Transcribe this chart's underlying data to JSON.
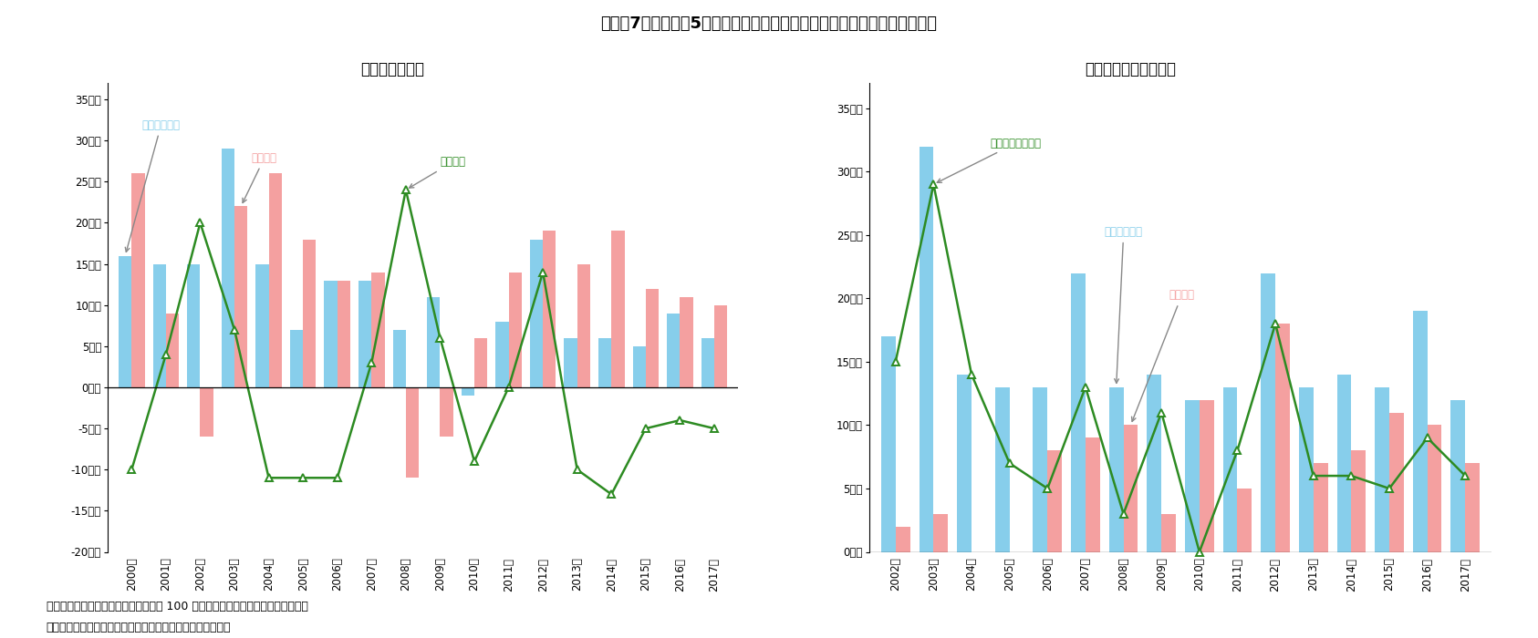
{
  "title": "図表－7　東京都心5区オフィスビルの賃貸可能面積・賃貸面積・空室面積",
  "subtitle_left": "＜前年比増分＞",
  "subtitle_right": "＜賃貸可能面積増分＞",
  "footnote1": "（注）都心５区に立地する基準階面積 100 坪以上の主要賃貸事務所ビルを対象。",
  "footnote2": "（出所）三鬼商事のデータを基にニッセイ基礎研究所が作成",
  "left_years": [
    "2000年",
    "2001年",
    "2002年",
    "2003年",
    "2004年",
    "2005年",
    "2006年",
    "2007年",
    "2008年",
    "2009年",
    "2010年",
    "2011年",
    "2012年",
    "2013年",
    "2014年",
    "2015年",
    "2016年",
    "2017年"
  ],
  "left_bar1": [
    16,
    15,
    15,
    29,
    15,
    7,
    13,
    13,
    7,
    11,
    -1,
    8,
    18,
    6,
    6,
    5,
    9,
    6
  ],
  "left_bar2": [
    26,
    9,
    -6,
    22,
    26,
    18,
    13,
    14,
    -11,
    -6,
    6,
    14,
    19,
    15,
    19,
    12,
    11,
    10
  ],
  "left_line": [
    -10,
    4,
    20,
    7,
    -11,
    -11,
    -11,
    3,
    24,
    6,
    -9,
    0,
    14,
    -10,
    -13,
    -5,
    -4,
    -5
  ],
  "right_years": [
    "2002年",
    "2003年",
    "2004年",
    "2005年",
    "2006年",
    "2007年",
    "2008年",
    "2009年",
    "2010年",
    "2011年",
    "2012年",
    "2013年",
    "2014年",
    "2015年",
    "2016年",
    "2017年"
  ],
  "right_bar1": [
    17,
    32,
    14,
    13,
    13,
    22,
    13,
    14,
    12,
    13,
    22,
    13,
    14,
    13,
    19,
    12
  ],
  "right_bar2": [
    2,
    3,
    0,
    0,
    8,
    9,
    10,
    3,
    12,
    5,
    18,
    7,
    8,
    11,
    10,
    7
  ],
  "right_line": [
    15,
    29,
    14,
    7,
    5,
    13,
    3,
    11,
    0,
    8,
    18,
    6,
    6,
    5,
    9,
    6
  ],
  "bar_blue": "#87CEEB",
  "bar_pink": "#F4A0A0",
  "line_green": "#2D8B22",
  "background": "#FFFFFF",
  "ann_left_label1": "賃貸可能面積",
  "ann_left_label2": "賃貸面積",
  "ann_left_label3": "空室面積",
  "ann_right_label1": "賃貸可能面積増分",
  "ann_right_label2": "新規供給面積",
  "ann_right_label3": "減失面積"
}
